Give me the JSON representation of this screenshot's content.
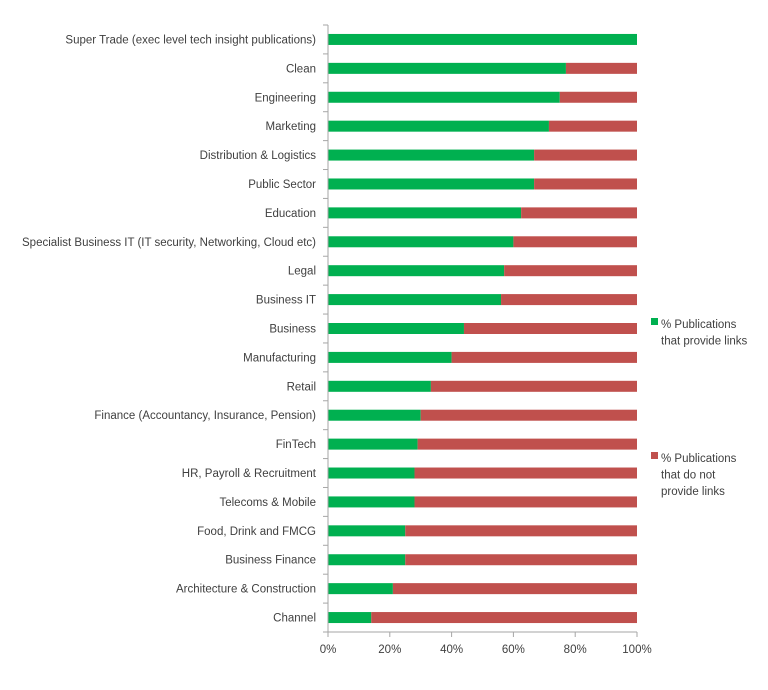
{
  "chart_data": {
    "type": "bar",
    "orientation": "horizontal",
    "stacked": "percent",
    "categories": [
      "Super Trade (exec level tech insight publications)",
      "Clean",
      "Engineering",
      "Marketing",
      "Distribution & Logistics",
      "Public Sector",
      "Education",
      "Specialist Business IT (IT security, Networking, Cloud etc)",
      "Legal",
      "Business IT",
      "Business",
      "Manufacturing",
      "Retail",
      "Finance (Accountancy, Insurance, Pension)",
      "FinTech",
      "HR, Payroll & Recruitment",
      "Telecoms & Mobile",
      "Food, Drink and FMCG",
      "Business Finance",
      "Architecture & Construction",
      "Channel"
    ],
    "series": [
      {
        "name": "% Publications that provide links",
        "legend_lines": [
          "% Publications",
          "that provide links"
        ],
        "color": "#00b050",
        "values": [
          100,
          77,
          75,
          71.5,
          66.7,
          66.7,
          62.5,
          60,
          57,
          56,
          44,
          40,
          33.3,
          30,
          29,
          28,
          28,
          25,
          25,
          21,
          14
        ]
      },
      {
        "name": "% Publications that do not provide links",
        "legend_lines": [
          "% Publications",
          "that do not",
          "provide links"
        ],
        "color": "#c0504d",
        "values": [
          0,
          23,
          25,
          28.5,
          33.3,
          33.3,
          37.5,
          40,
          43,
          44,
          56,
          60,
          66.7,
          70,
          71,
          72,
          72,
          75,
          75,
          79,
          86
        ]
      }
    ],
    "xlim": [
      0,
      100
    ],
    "x_ticks": [
      "0%",
      "20%",
      "40%",
      "60%",
      "80%",
      "100%"
    ],
    "legend_position": "right",
    "grid": false,
    "title": "",
    "xlabel": "",
    "ylabel": ""
  }
}
